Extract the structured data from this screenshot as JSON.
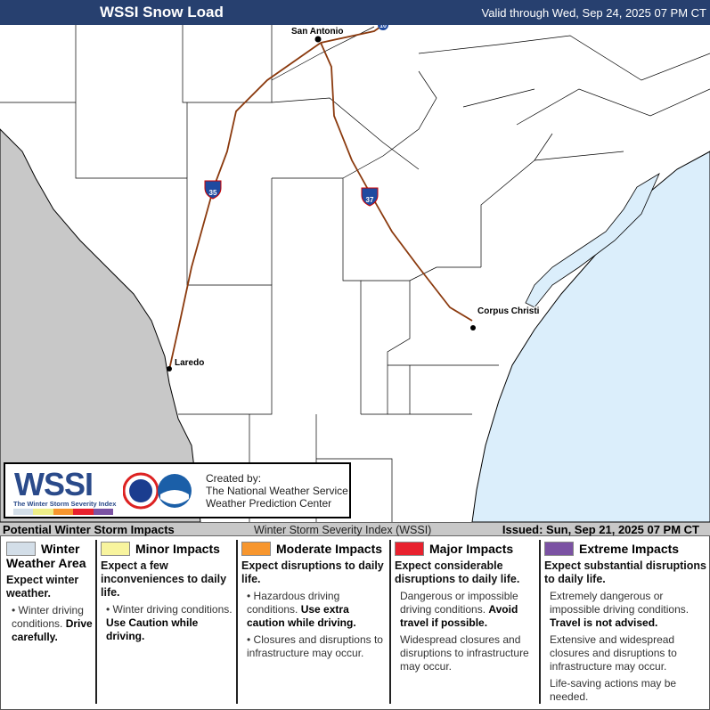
{
  "header": {
    "title": "WSSI Snow Load",
    "valid": "Valid through Wed, Sep 24, 2025 07 PM CT"
  },
  "map": {
    "cities": [
      "San Antonio",
      "Laredo",
      "Corpus Christi"
    ],
    "interstates": [
      "10",
      "35",
      "37"
    ],
    "colors": {
      "land": "#ffffff",
      "mexico": "#c8c8c8",
      "water": "#dbeefb",
      "highway": "#8b3a0e",
      "shield": "#1f4aa0"
    }
  },
  "logo": {
    "title": "WSSI",
    "subtitle": "The Winter Storm Severity Index",
    "created_by": "Created by:",
    "org1": "The National Weather Service",
    "org2": "Weather Prediction Center"
  },
  "strip": {
    "left": "Potential Winter Storm Impacts",
    "center": "Winter Storm Severity Index (WSSI)",
    "issued": "Issued: Sun, Sep 21, 2025 07 PM CT"
  },
  "legend": [
    {
      "color": "#d3dee8",
      "title": "Winter Weather Area",
      "expect": "Expect winter weather.",
      "items": [
        {
          "text": "Winter driving conditions. ",
          "bold": "Drive carefully."
        }
      ]
    },
    {
      "color": "#f8f49e",
      "title": "Minor Impacts",
      "expect": "Expect a few inconveniences to daily life.",
      "items": [
        {
          "text": "Winter driving conditions. ",
          "bold": "Use Caution while driving."
        }
      ]
    },
    {
      "color": "#f7962e",
      "title": "Moderate Impacts",
      "expect": "Expect disruptions to daily life.",
      "items": [
        {
          "text": "Hazardous driving conditions. ",
          "bold": "Use extra caution while driving."
        },
        {
          "text": "Closures and disruptions to infrastructure may occur.",
          "bold": ""
        }
      ]
    },
    {
      "color": "#e8212e",
      "title": "Major Impacts",
      "expect": "Expect considerable disruptions to daily life.",
      "items": [
        {
          "text": "Dangerous or impossible driving conditions. ",
          "bold": "Avoid travel if possible."
        },
        {
          "text": "Widespread closures and disruptions to infrastructure may occur.",
          "bold": ""
        }
      ]
    },
    {
      "color": "#7b52a3",
      "title": "Extreme Impacts",
      "expect": "Expect substantial disruptions to daily life.",
      "items": [
        {
          "text": "Extremely dangerous or impossible driving conditions. ",
          "bold": "Travel is not advised."
        },
        {
          "text": "Extensive and widespread closures and disruptions to infrastructure may occur.",
          "bold": ""
        },
        {
          "text": "Life-saving actions may be needed.",
          "bold": ""
        }
      ]
    }
  ]
}
